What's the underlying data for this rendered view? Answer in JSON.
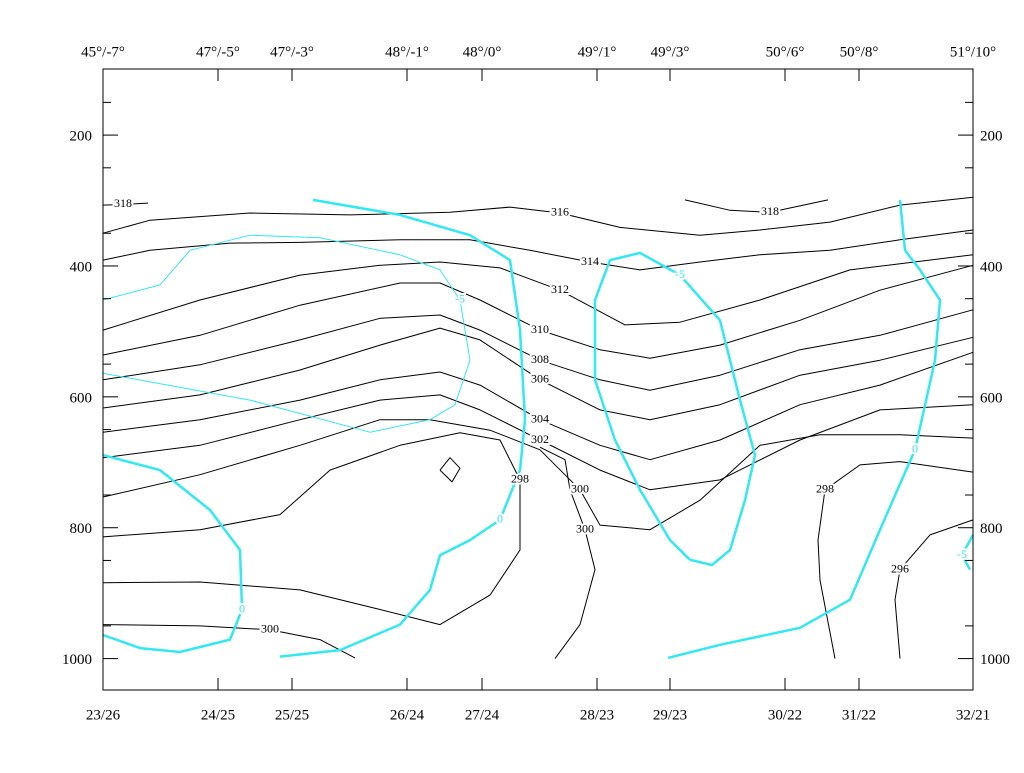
{
  "chart_data": {
    "type": "contour",
    "xlim": [
      0,
      870
    ],
    "ylim": [
      1048,
      99
    ],
    "xticks": [
      {
        "value": 0,
        "label": "23/26"
      },
      {
        "value": 115,
        "label": "24/25"
      },
      {
        "value": 189,
        "label": "25/25"
      },
      {
        "value": 304,
        "label": "26/24"
      },
      {
        "value": 379,
        "label": "27/24"
      },
      {
        "value": 494,
        "label": "28/23"
      },
      {
        "value": 567,
        "label": "29/23"
      },
      {
        "value": 682,
        "label": "30/22"
      },
      {
        "value": 756,
        "label": "31/22"
      },
      {
        "value": 870,
        "label": "32/21"
      }
    ],
    "x2ticks": [
      {
        "value": 0,
        "label": "45°/-7°"
      },
      {
        "value": 115,
        "label": "47°/-5°"
      },
      {
        "value": 189,
        "label": "47°/-3°"
      },
      {
        "value": 304,
        "label": "48°/-1°"
      },
      {
        "value": 379,
        "label": "48°/0°"
      },
      {
        "value": 494,
        "label": "49°/1°"
      },
      {
        "value": 567,
        "label": "49°/3°"
      },
      {
        "value": 682,
        "label": "50°/6°"
      },
      {
        "value": 756,
        "label": "50°/8°"
      },
      {
        "value": 870,
        "label": "51°/10°"
      }
    ],
    "yticks": [
      200,
      400,
      600,
      800,
      1000
    ],
    "yminorticks": [
      150,
      250,
      350,
      450,
      550,
      650,
      750,
      850,
      950
    ],
    "contours": [
      {
        "level": 318,
        "color": "#000000",
        "width": 1,
        "x": [
          0,
          20,
          45
        ],
        "y": [
          307,
          306,
          304
        ]
      },
      {
        "level": 318,
        "color": "#000000",
        "width": 1,
        "x": [
          582,
          627,
          667,
          725
        ],
        "y": [
          299,
          315,
          318,
          299
        ]
      },
      {
        "level": 316,
        "color": "#000000",
        "width": 1,
        "x": [
          0,
          47,
          147,
          247,
          347,
          407,
          457,
          517,
          597,
          657,
          727,
          797,
          870
        ],
        "y": [
          350,
          330,
          319,
          322,
          318,
          310,
          319,
          341,
          353,
          345,
          333,
          307,
          295
        ]
      },
      {
        "level": 314,
        "color": "#000000",
        "width": 1,
        "x": [
          0,
          47,
          127,
          197,
          297,
          367,
          427,
          487,
          537,
          597,
          657,
          727,
          797,
          870
        ],
        "y": [
          391,
          376,
          365,
          364,
          360,
          360,
          376,
          394,
          406,
          394,
          383,
          376,
          360,
          345
        ]
      },
      {
        "level": 312,
        "color": "#000000",
        "width": 1,
        "x": [
          0,
          97,
          197,
          277,
          337,
          397,
          457,
          522,
          577,
          657,
          747,
          870
        ],
        "y": [
          498,
          452,
          414,
          399,
          394,
          403,
          437,
          490,
          486,
          452,
          406,
          383
        ]
      },
      {
        "level": 310,
        "color": "#000000",
        "width": 1,
        "x": [
          0,
          97,
          197,
          297,
          337,
          377,
          437,
          497,
          547,
          617,
          697,
          777,
          870
        ],
        "y": [
          536,
          506,
          460,
          426,
          426,
          452,
          498,
          528,
          541,
          521,
          483,
          437,
          399
        ]
      },
      {
        "level": 308,
        "color": "#000000",
        "width": 1,
        "x": [
          0,
          97,
          197,
          277,
          337,
          377,
          437,
          497,
          547,
          617,
          697,
          777,
          870
        ],
        "y": [
          574,
          551,
          513,
          480,
          475,
          498,
          544,
          574,
          590,
          567,
          528,
          506,
          467
        ]
      },
      {
        "level": 306,
        "color": "#000000",
        "width": 1,
        "x": [
          0,
          97,
          197,
          277,
          337,
          377,
          437,
          497,
          547,
          617,
          697,
          777,
          870
        ],
        "y": [
          617,
          597,
          559,
          521,
          495,
          513,
          574,
          620,
          635,
          612,
          567,
          544,
          509
        ]
      },
      {
        "level": 304,
        "color": "#000000",
        "width": 1,
        "x": [
          0,
          97,
          197,
          277,
          337,
          377,
          437,
          497,
          547,
          617,
          697,
          777,
          870
        ],
        "y": [
          654,
          635,
          605,
          574,
          562,
          582,
          635,
          674,
          696,
          666,
          612,
          582,
          532
        ]
      },
      {
        "level": 302,
        "color": "#000000",
        "width": 1,
        "x": [
          0,
          97,
          197,
          277,
          337,
          377,
          437,
          497,
          547,
          617,
          697,
          777,
          870
        ],
        "y": [
          693,
          674,
          635,
          605,
          597,
          620,
          666,
          712,
          742,
          727,
          666,
          620,
          612
        ]
      },
      {
        "level": 300,
        "color": "#000000",
        "width": 1,
        "x": [
          0,
          97,
          197,
          277,
          327,
          387,
          437,
          477,
          497,
          547,
          597,
          657,
          717,
          797,
          870
        ],
        "y": [
          753,
          719,
          674,
          635,
          635,
          651,
          681,
          742,
          796,
          803,
          758,
          674,
          658,
          658,
          663
        ]
      },
      {
        "level": 298,
        "color": "#000000",
        "width": 1,
        "x": [
          0,
          97,
          177,
          227,
          297,
          357,
          397,
          417,
          417,
          387,
          337,
          277,
          197,
          97,
          0
        ],
        "y": [
          814,
          803,
          780,
          712,
          674,
          655,
          666,
          727,
          834,
          903,
          948,
          925,
          895,
          883,
          884
        ]
      },
      {
        "level": 300,
        "color": "#000000",
        "width": 1,
        "x": [
          0,
          97,
          167,
          217,
          252
        ],
        "y": [
          948,
          950,
          956,
          971,
          999
        ]
      },
      {
        "level": 300,
        "color": "#000000",
        "width": 1,
        "x": [
          452,
          477,
          492,
          482,
          467,
          462,
          437
        ],
        "y": [
          1000,
          948,
          864,
          803,
          742,
          696,
          677
        ]
      },
      {
        "level": 298,
        "color": "#000000",
        "width": 1,
        "x": [
          732,
          717,
          715,
          722,
          757,
          797,
          870
        ],
        "y": [
          1000,
          880,
          819,
          742,
          704,
          699,
          715
        ]
      },
      {
        "level": 296,
        "color": "#000000",
        "width": 1,
        "x": [
          797,
          792,
          797,
          827,
          870
        ],
        "y": [
          1000,
          910,
          864,
          811,
          788
        ]
      },
      {
        "color": "#000000",
        "width": 1,
        "x": [
          337,
          347,
          357,
          349,
          337
        ],
        "y": [
          712,
          693,
          709,
          730,
          712
        ]
      },
      {
        "level": -5,
        "color": "#33e8f0",
        "width": 1,
        "x": [
          0,
          57,
          87,
          147,
          217,
          297,
          337,
          357,
          367,
          352,
          327,
          267,
          147,
          0
        ],
        "y": [
          452,
          429,
          376,
          353,
          357,
          383,
          406,
          452,
          544,
          612,
          635,
          654,
          605,
          564
        ]
      },
      {
        "level": 0,
        "color": "#33e8f0",
        "width": 2.5,
        "x": [
          210,
          297,
          367,
          407,
          417,
          422,
          417,
          397,
          367,
          337,
          327,
          297,
          237,
          177
        ],
        "y": [
          299,
          322,
          353,
          391,
          498,
          635,
          712,
          788,
          819,
          842,
          895,
          948,
          987,
          997
        ]
      },
      {
        "level": 0,
        "color": "#33e8f0",
        "width": 2.5,
        "x": [
          0,
          57,
          107,
          137,
          139,
          127,
          77,
          37,
          0
        ],
        "y": [
          689,
          712,
          773,
          834,
          925,
          971,
          990,
          984,
          964
        ]
      },
      {
        "level": -5,
        "color": "#33e8f0",
        "width": 2.5,
        "x": [
          587,
          567,
          537,
          512,
          492,
          492,
          507,
          537,
          577,
          617,
          637,
          652,
          642,
          627,
          609,
          587
        ],
        "y": [
          849,
          819,
          742,
          666,
          574,
          452,
          391,
          380,
          414,
          483,
          605,
          689,
          758,
          834,
          857,
          849
        ]
      },
      {
        "level": 0,
        "color": "#33e8f0",
        "width": 2.5,
        "x": [
          565,
          617,
          697,
          747,
          777,
          812,
          832,
          837,
          817,
          802,
          797
        ],
        "y": [
          999,
          979,
          953,
          910,
          803,
          681,
          544,
          452,
          406,
          376,
          299
        ]
      },
      {
        "level": -5,
        "color": "#33e8f0",
        "width": 2.5,
        "x": [
          870,
          859,
          867
        ],
        "y": [
          811,
          842,
          864
        ]
      }
    ]
  }
}
